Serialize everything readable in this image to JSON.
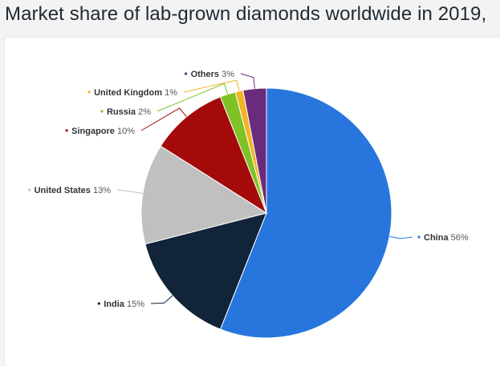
{
  "title": "Market share of lab-grown diamonds worldwide in 2019,",
  "chart_data": {
    "type": "pie",
    "title": "Market share of lab-grown diamonds worldwide in 2019,",
    "slices": [
      {
        "label": "China",
        "value": 56,
        "display": "56%",
        "color": "#2876dd"
      },
      {
        "label": "India",
        "value": 15,
        "display": "15%",
        "color": "#12243a"
      },
      {
        "label": "United States",
        "value": 13,
        "display": "13%",
        "color": "#c0c0c0"
      },
      {
        "label": "Singapore",
        "value": 10,
        "display": "10%",
        "color": "#a50a0a"
      },
      {
        "label": "Russia",
        "value": 2,
        "display": "2%",
        "color": "#7ec226"
      },
      {
        "label": "United Kingdom",
        "value": 1,
        "display": "1%",
        "color": "#f2b325"
      },
      {
        "label": "Others",
        "value": 3,
        "display": "3%",
        "color": "#6a2b7c"
      }
    ]
  }
}
